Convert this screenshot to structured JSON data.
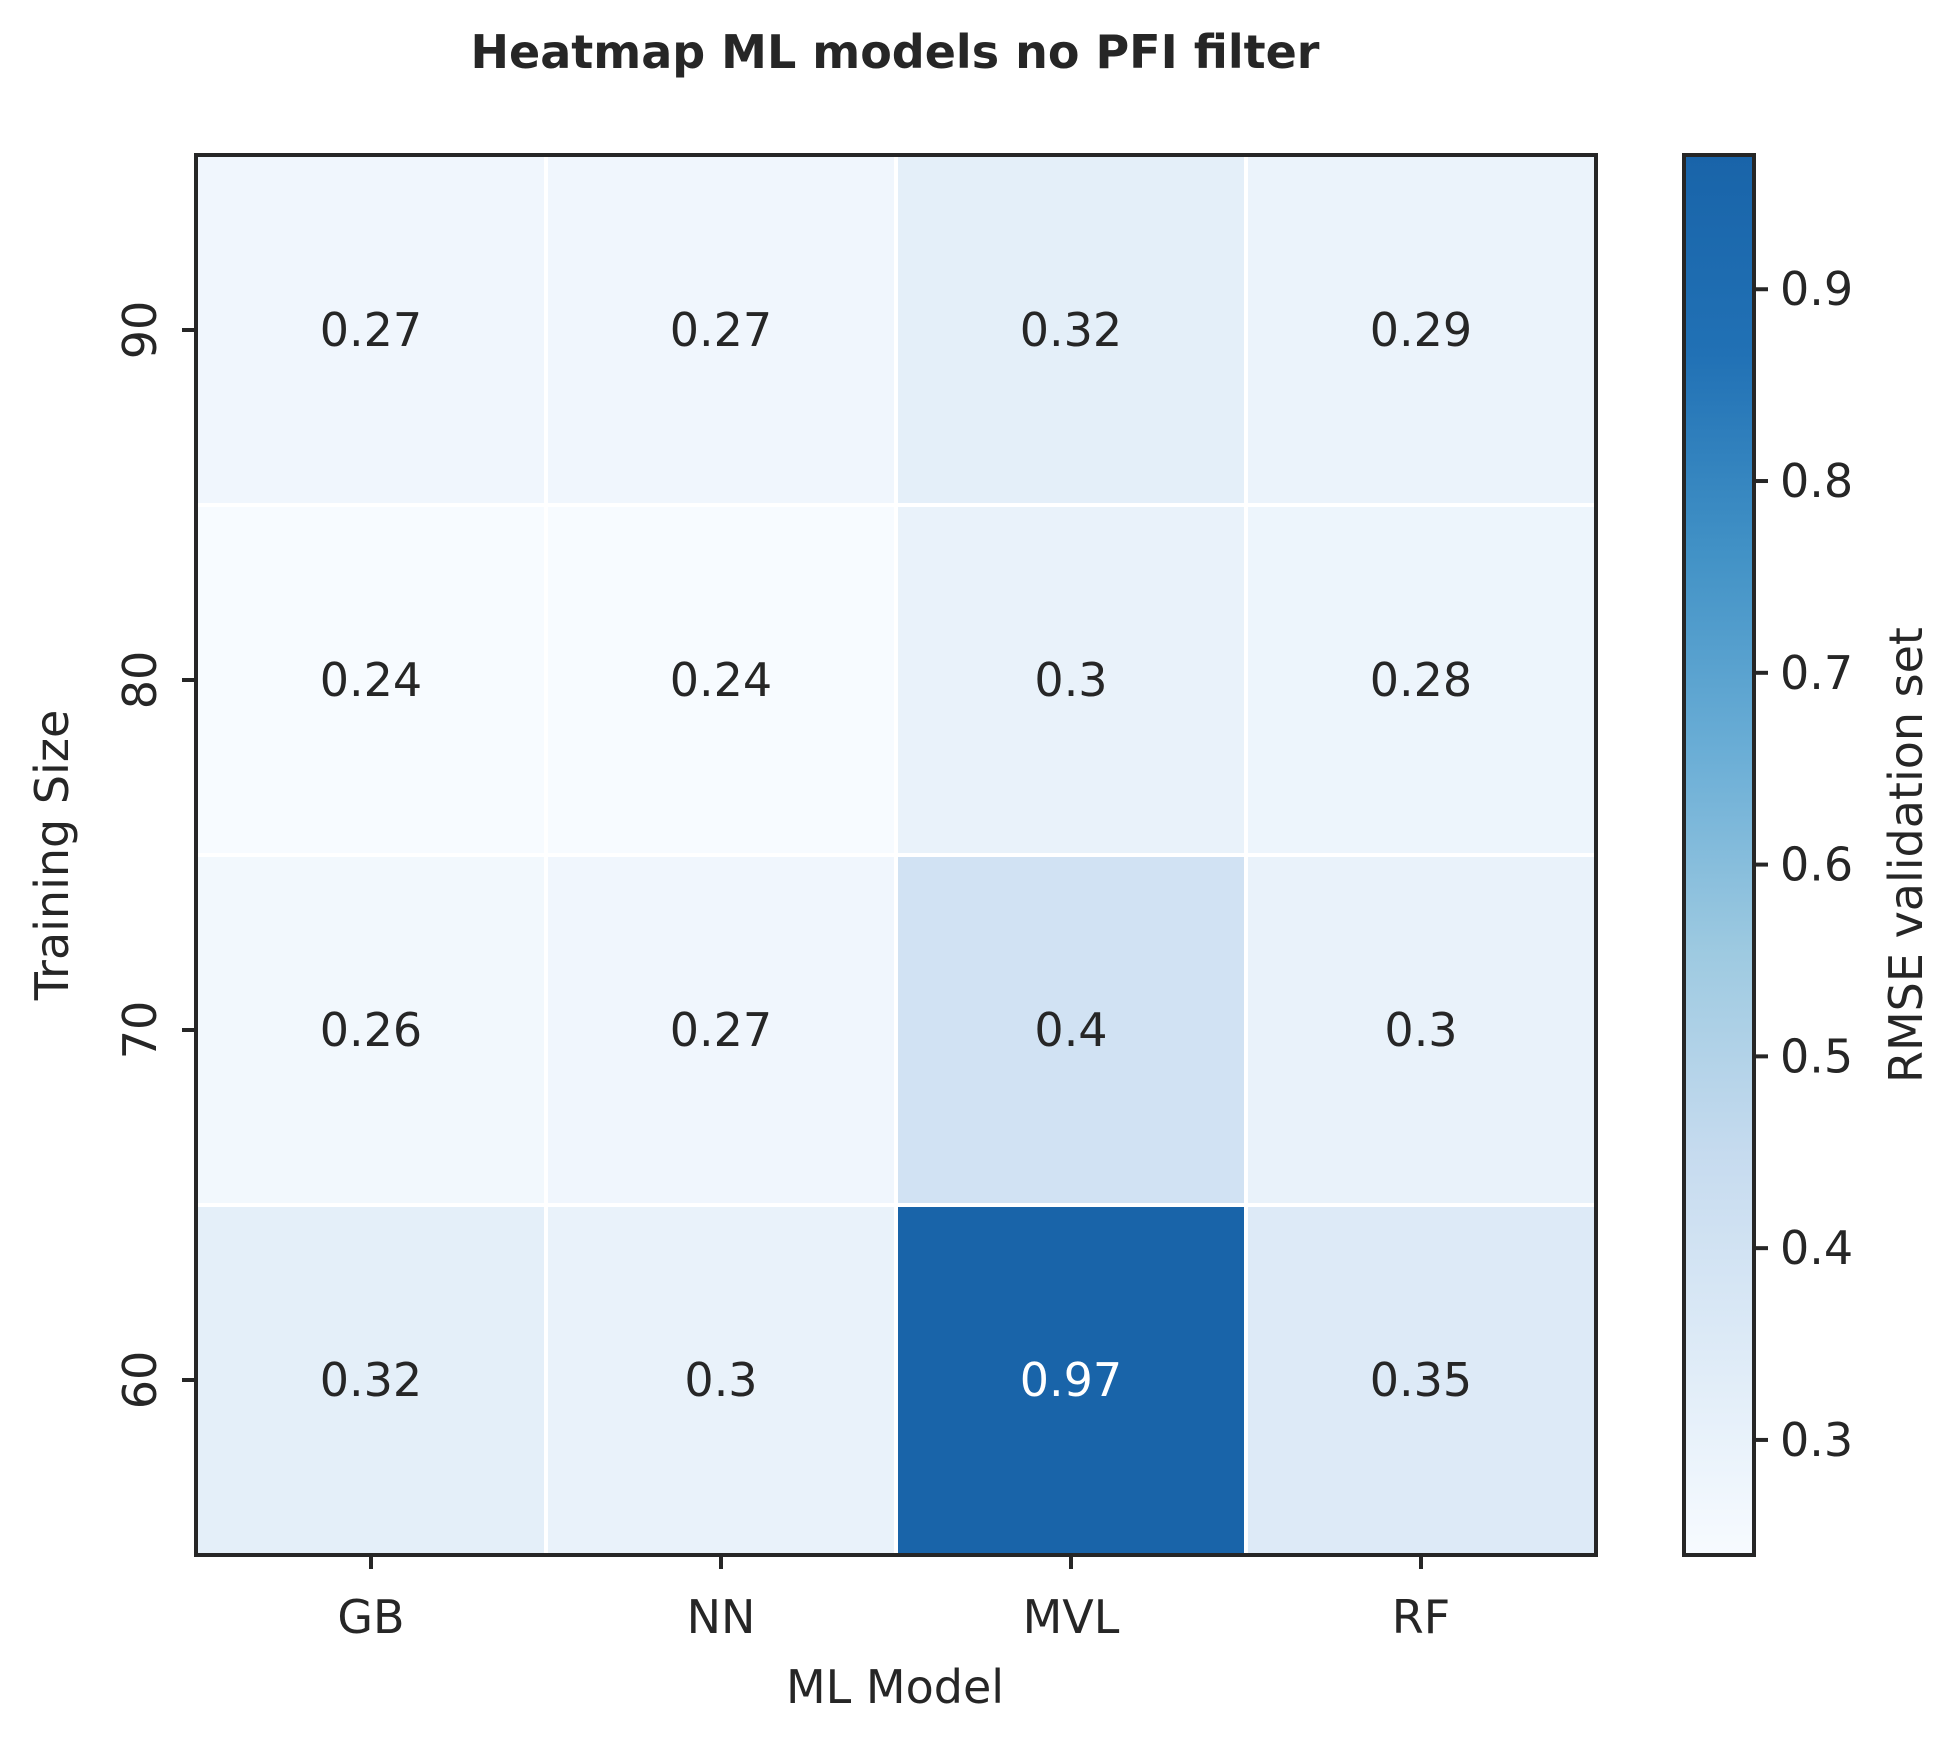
{
  "chart_data": {
    "type": "heatmap",
    "title": "Heatmap ML models no PFI filter",
    "xlabel": "ML Model",
    "ylabel": "Training Size",
    "x_categories": [
      "GB",
      "NN",
      "MVL",
      "RF"
    ],
    "y_categories": [
      "90",
      "80",
      "70",
      "60"
    ],
    "values": [
      [
        0.27,
        0.27,
        0.32,
        0.29
      ],
      [
        0.24,
        0.24,
        0.3,
        0.28
      ],
      [
        0.26,
        0.27,
        0.4,
        0.3
      ],
      [
        0.32,
        0.3,
        0.97,
        0.35
      ]
    ],
    "cell_labels": [
      [
        "0.27",
        "0.27",
        "0.32",
        "0.29"
      ],
      [
        "0.24",
        "0.24",
        "0.3",
        "0.28"
      ],
      [
        "0.26",
        "0.27",
        "0.4",
        "0.3"
      ],
      [
        "0.32",
        "0.3",
        "0.97",
        "0.35"
      ]
    ],
    "colorbar": {
      "label": "RMSE validation set",
      "min": 0.24,
      "max": 0.97,
      "ticks": [
        0.3,
        0.4,
        0.5,
        0.6,
        0.7,
        0.8,
        0.9
      ],
      "tick_labels": [
        "0.3",
        "0.4",
        "0.5",
        "0.6",
        "0.7",
        "0.8",
        "0.9"
      ],
      "colormap": "Blues",
      "color_stops": [
        "#f7fbff",
        "#deebf7",
        "#c6dbef",
        "#9ecae1",
        "#6baed6",
        "#4292c6",
        "#2171b5",
        "#1964a9"
      ]
    },
    "grid": false,
    "colors": {
      "axis": "#262626",
      "cell_border": "#ffffff",
      "text_dark": "#262626",
      "text_light": "#ffffff"
    }
  }
}
